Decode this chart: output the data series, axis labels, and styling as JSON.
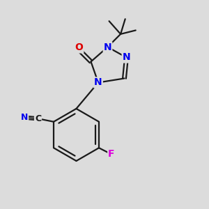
{
  "background_color": "#dcdcdc",
  "bond_color": "#1a1a1a",
  "atom_colors": {
    "N": "#0000ee",
    "O": "#dd0000",
    "F": "#dd00dd",
    "C": "#1a1a1a"
  },
  "figsize": [
    3.0,
    3.0
  ],
  "dpi": 100
}
